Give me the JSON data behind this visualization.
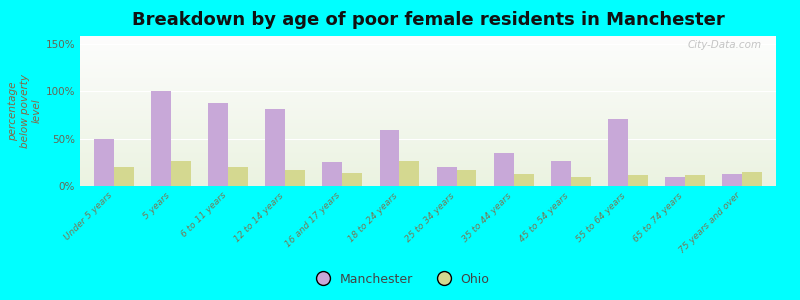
{
  "title": "Breakdown by age of poor female residents in Manchester",
  "ylabel": "percentage\nbelow poverty\nlevel",
  "categories": [
    "Under 5 years",
    "5 years",
    "6 to 11 years",
    "12 to 14 years",
    "16 and 17 years",
    "18 to 24 years",
    "25 to 34 years",
    "35 to 44 years",
    "45 to 54 years",
    "55 to 64 years",
    "65 to 74 years",
    "75 years and over"
  ],
  "manchester": [
    50,
    100,
    87,
    81,
    25,
    59,
    20,
    35,
    26,
    71,
    10,
    13
  ],
  "ohio": [
    20,
    26,
    20,
    17,
    14,
    26,
    17,
    13,
    10,
    12,
    12,
    15
  ],
  "manchester_color": "#c8a8d8",
  "ohio_color": "#d4d890",
  "bg_color": "#00ffff",
  "yticks": [
    0,
    50,
    100,
    150
  ],
  "ylim": [
    0,
    158
  ],
  "title_fontsize": 13,
  "watermark": "City-Data.com",
  "tick_color": "#777755",
  "ylabel_color": "#886644"
}
